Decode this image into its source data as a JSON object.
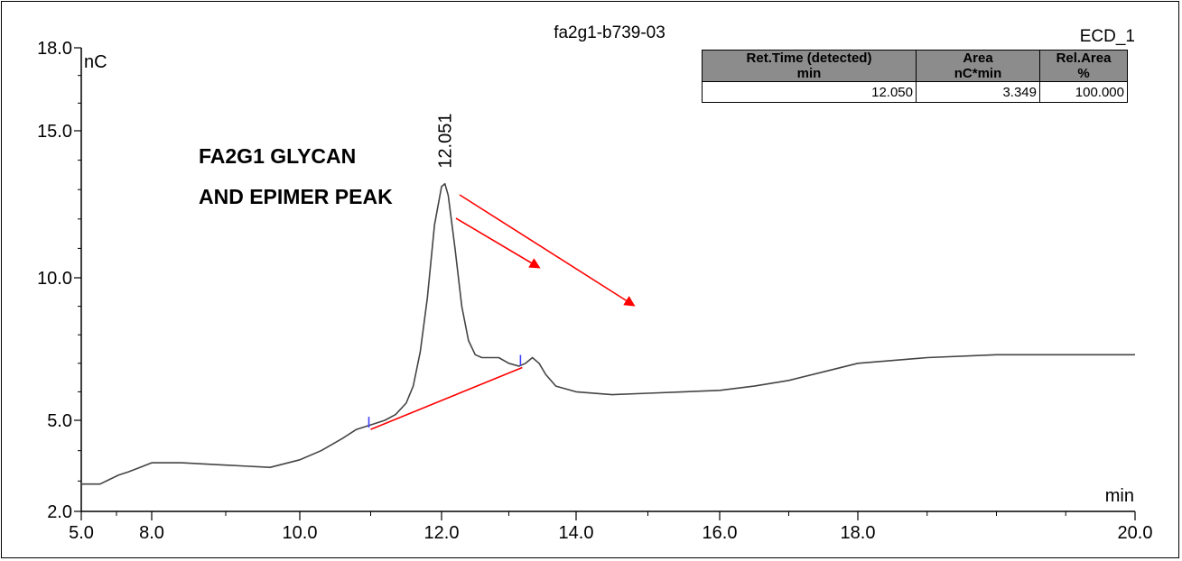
{
  "chart_data": {
    "type": "line",
    "title": "fa2g1-b739-03",
    "channel": "ECD_1",
    "xlabel": "min",
    "ylabel": "nC",
    "xlim": [
      5.0,
      20.0
    ],
    "ylim": [
      2.0,
      18.0
    ],
    "x_ticks": [
      5.0,
      8.0,
      10.0,
      12.0,
      14.0,
      16.0,
      18.0,
      20.0
    ],
    "x_tick_labels": [
      "5.0",
      "8.0",
      "10.0",
      "12.0",
      "14.0",
      "16.0",
      "18.0",
      "20.0"
    ],
    "y_ticks": [
      2.0,
      5.0,
      10.0,
      15.0,
      18.0
    ],
    "y_tick_labels": [
      "2.0",
      "5.0",
      "10.0",
      "15.0",
      "18.0"
    ],
    "grid": false,
    "series": [
      {
        "color": "#444444",
        "x": [
          5.0,
          5.8,
          6.2,
          6.6,
          7.0,
          7.5,
          8.0,
          8.4,
          8.8,
          9.2,
          9.6,
          10.0,
          10.3,
          10.6,
          10.8,
          11.0,
          11.2,
          11.35,
          11.5,
          11.6,
          11.7,
          11.8,
          11.9,
          12.0,
          12.05,
          12.1,
          12.2,
          12.3,
          12.4,
          12.5,
          12.6,
          12.7,
          12.85,
          13.0,
          13.15,
          13.25,
          13.35,
          13.45,
          13.55,
          13.7,
          14.0,
          14.5,
          15.0,
          15.5,
          16.0,
          16.5,
          17.0,
          17.5,
          18.0,
          18.5,
          19.0,
          19.5,
          20.0
        ],
        "y": [
          2.9,
          2.9,
          3.05,
          3.2,
          3.3,
          3.45,
          3.6,
          3.6,
          3.55,
          3.5,
          3.45,
          3.7,
          4.0,
          4.4,
          4.7,
          4.85,
          5.0,
          5.2,
          5.6,
          6.2,
          7.4,
          9.3,
          11.8,
          13.1,
          13.2,
          12.8,
          11.0,
          9.0,
          7.8,
          7.3,
          7.2,
          7.2,
          7.2,
          7.0,
          6.9,
          7.0,
          7.2,
          7.0,
          6.6,
          6.2,
          6.0,
          5.9,
          5.95,
          6.0,
          6.05,
          6.2,
          6.4,
          6.7,
          7.0,
          7.2,
          7.3,
          7.3,
          7.3
        ]
      }
    ],
    "baseline": {
      "color": "#ff0000",
      "x": [
        11.0,
        13.2
      ],
      "y": [
        4.7,
        6.85
      ]
    },
    "integration_markers": [
      {
        "x": 11.0,
        "y": 4.7
      },
      {
        "x": 13.2,
        "y": 6.85
      }
    ],
    "peak_label": {
      "x": 12.05,
      "y": 13.2,
      "text": "12.051"
    },
    "annotation": {
      "lines": [
        "FA2G1 GLYCAN",
        "AND EPIMER PEAK"
      ],
      "arrow_color": "#ff0000"
    },
    "results_table": {
      "headers": [
        [
          "Ret.Time (detected)",
          "min"
        ],
        [
          "Area",
          "nC*min"
        ],
        [
          "Rel.Area",
          "%"
        ]
      ],
      "rows": [
        [
          "12.050",
          "3.349",
          "100.000"
        ]
      ]
    }
  }
}
